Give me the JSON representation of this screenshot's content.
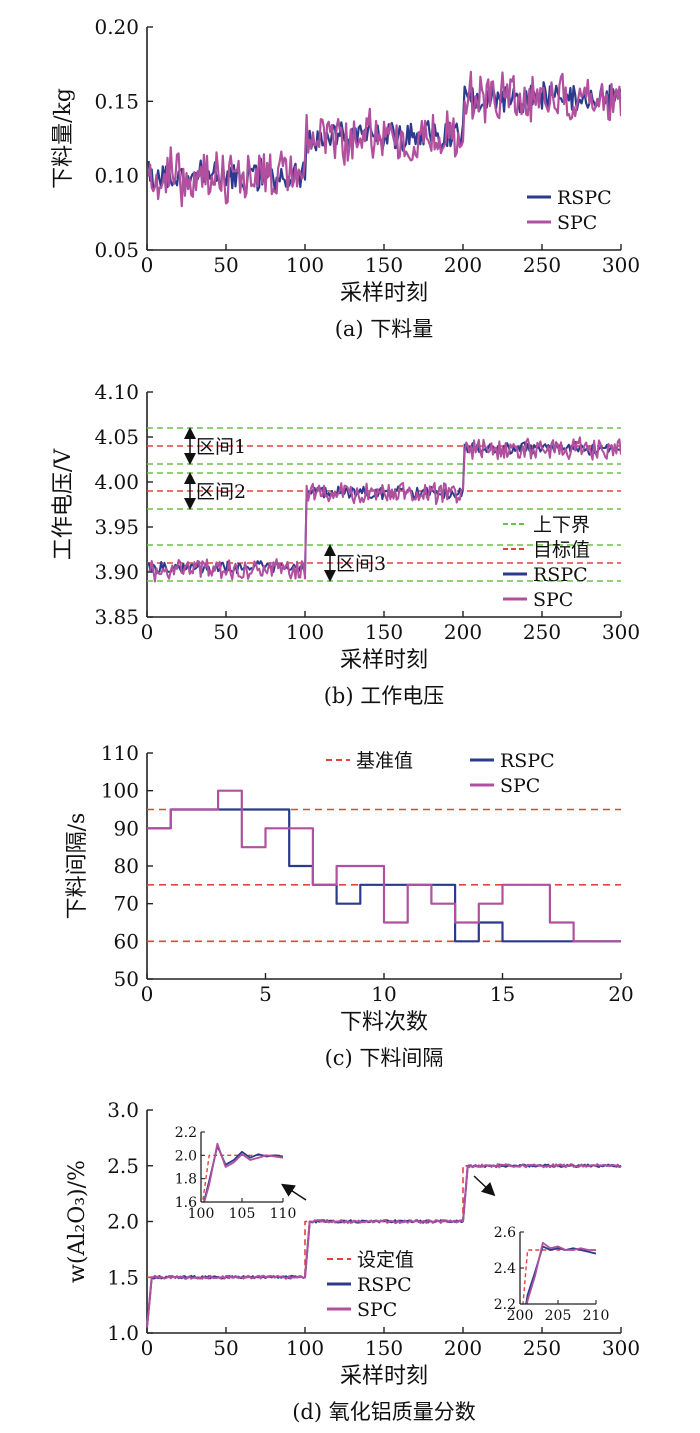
{
  "colors": {
    "rspc": "#2b3a8c",
    "spc": "#b0509e",
    "bound": "#6cc04a",
    "target": "#e0443b",
    "axis": "#222222"
  },
  "chart_data": [
    {
      "id": "a",
      "type": "line",
      "caption": "(a) 下料量",
      "xlabel": "采样时刻",
      "ylabel": "下料量/kg",
      "xlim": [
        0,
        300
      ],
      "ylim": [
        0.05,
        0.2
      ],
      "xticks": [
        0,
        50,
        100,
        150,
        200,
        250,
        300
      ],
      "yticks": [
        0.05,
        0.1,
        0.15,
        0.2
      ],
      "ytick_labels": [
        "0.05",
        "0.10",
        "0.15",
        "0.20"
      ],
      "legend_position": "lower-right",
      "legend": [
        "RSPC",
        "SPC"
      ],
      "x": {
        "start": 1,
        "end": 300,
        "step": 1
      },
      "series": [
        {
          "name": "RSPC",
          "segments": [
            {
              "from": 1,
              "to": 100,
              "mean": 0.1,
              "amp": 0.009,
              "seed": 11
            },
            {
              "from": 101,
              "to": 200,
              "mean": 0.127,
              "amp": 0.009,
              "seed": 12
            },
            {
              "from": 201,
              "to": 300,
              "mean": 0.152,
              "amp": 0.009,
              "seed": 13
            }
          ]
        },
        {
          "name": "SPC",
          "segments": [
            {
              "from": 1,
              "to": 100,
              "mean": 0.099,
              "amp": 0.016,
              "seed": 21
            },
            {
              "from": 101,
              "to": 200,
              "mean": 0.126,
              "amp": 0.016,
              "seed": 22
            },
            {
              "from": 201,
              "to": 300,
              "mean": 0.153,
              "amp": 0.016,
              "seed": 23
            }
          ]
        }
      ]
    },
    {
      "id": "b",
      "type": "line",
      "caption": "(b) 工作电压",
      "xlabel": "采样时刻",
      "ylabel": "工作电压/V",
      "xlim": [
        0,
        300
      ],
      "ylim": [
        3.85,
        4.1
      ],
      "xticks": [
        0,
        50,
        100,
        150,
        200,
        250,
        300
      ],
      "yticks": [
        3.85,
        3.9,
        3.95,
        4.0,
        4.05,
        4.1
      ],
      "ytick_labels": [
        "3.85",
        "3.90",
        "3.95",
        "4.00",
        "4.05",
        "4.10"
      ],
      "legend_position": "lower-right",
      "legend": [
        "上下界",
        "目标值",
        "RSPC",
        "SPC"
      ],
      "bounds": [
        3.89,
        3.93,
        3.97,
        4.01,
        4.02,
        4.06
      ],
      "targets": [
        3.91,
        3.99,
        4.04
      ],
      "intervals": [
        {
          "label": "区间1",
          "low": 4.02,
          "high": 4.06
        },
        {
          "label": "区间2",
          "low": 3.97,
          "high": 4.01
        },
        {
          "label": "区间3",
          "low": 3.89,
          "high": 3.93
        }
      ],
      "x": {
        "start": 1,
        "end": 300,
        "step": 1
      },
      "series": [
        {
          "name": "RSPC",
          "segments": [
            {
              "from": 1,
              "to": 100,
              "mean": 3.905,
              "amp": 0.006,
              "seed": 31
            },
            {
              "from": 101,
              "to": 200,
              "mean": 3.988,
              "amp": 0.006,
              "seed": 32
            },
            {
              "from": 201,
              "to": 300,
              "mean": 4.037,
              "amp": 0.006,
              "seed": 33
            }
          ]
        },
        {
          "name": "SPC",
          "segments": [
            {
              "from": 1,
              "to": 100,
              "mean": 3.903,
              "amp": 0.011,
              "seed": 41
            },
            {
              "from": 101,
              "to": 200,
              "mean": 3.987,
              "amp": 0.011,
              "seed": 42
            },
            {
              "from": 201,
              "to": 300,
              "mean": 4.036,
              "amp": 0.011,
              "seed": 43
            }
          ]
        }
      ]
    },
    {
      "id": "c",
      "type": "line",
      "caption": "(c) 下料间隔",
      "xlabel": "下料次数",
      "ylabel": "下料间隔/s",
      "xlim": [
        0,
        20
      ],
      "ylim": [
        50,
        110
      ],
      "xticks": [
        0,
        5,
        10,
        15,
        20
      ],
      "yticks": [
        50,
        60,
        70,
        80,
        90,
        100,
        110
      ],
      "ytick_labels": [
        "50",
        "60",
        "70",
        "80",
        "90",
        "100",
        "110"
      ],
      "legend_position": "top",
      "legend": [
        "基准值",
        "RSPC",
        "SPC"
      ],
      "reference": [
        60,
        75,
        95
      ],
      "series": [
        {
          "name": "RSPC",
          "steps": [
            90,
            95,
            95,
            95,
            95,
            95,
            80,
            75,
            70,
            75,
            75,
            75,
            75,
            60,
            65,
            60,
            60,
            60,
            60,
            60
          ]
        },
        {
          "name": "SPC",
          "steps": [
            90,
            95,
            95,
            100,
            85,
            90,
            90,
            75,
            80,
            80,
            65,
            75,
            70,
            65,
            70,
            75,
            75,
            65,
            60,
            60
          ]
        }
      ]
    },
    {
      "id": "d",
      "type": "line",
      "caption": "(d) 氧化铝质量分数",
      "xlabel": "采样时刻",
      "ylabel": "w(Al₂O₃)/%",
      "xlim": [
        0,
        300
      ],
      "ylim": [
        1.0,
        3.0
      ],
      "xticks": [
        0,
        50,
        100,
        150,
        200,
        250,
        300
      ],
      "yticks": [
        1.0,
        1.5,
        2.0,
        2.5,
        3.0
      ],
      "ytick_labels": [
        "1.0",
        "1.5",
        "2.0",
        "2.5",
        "3.0"
      ],
      "legend_position": "lower-center",
      "legend": [
        "设定值",
        "RSPC",
        "SPC"
      ],
      "setpoint": [
        {
          "from": 0,
          "to": 100,
          "value": 1.5
        },
        {
          "from": 100,
          "to": 200,
          "value": 2.0
        },
        {
          "from": 200,
          "to": 300,
          "value": 2.5
        }
      ],
      "series": [
        {
          "name": "RSPC",
          "steady": [
            1.5,
            2.0,
            2.5
          ],
          "amp": 0.012,
          "seed": 51
        },
        {
          "name": "SPC",
          "steady": [
            1.5,
            2.0,
            2.5
          ],
          "amp": 0.014,
          "seed": 61
        }
      ],
      "insets": [
        {
          "xlim": [
            100,
            110
          ],
          "ylim": [
            1.6,
            2.2
          ],
          "xticks": [
            100,
            105,
            110
          ],
          "yticks": [
            1.6,
            1.8,
            2.0,
            2.2
          ],
          "ytick_labels": [
            "1.6",
            "1.8",
            "2.0",
            "2.2"
          ],
          "setpoint": [
            [
              100,
              1.5
            ],
            [
              101,
              2.0
            ],
            [
              110,
              2.0
            ]
          ],
          "rspc": [
            [
              100,
              1.5
            ],
            [
              101,
              1.78
            ],
            [
              102,
              2.08
            ],
            [
              103,
              1.92
            ],
            [
              104,
              1.96
            ],
            [
              105,
              2.03
            ],
            [
              106,
              1.98
            ],
            [
              107,
              2.01
            ],
            [
              108,
              1.99
            ],
            [
              109,
              2.0
            ],
            [
              110,
              1.99
            ]
          ],
          "spc": [
            [
              100,
              1.5
            ],
            [
              101,
              1.75
            ],
            [
              102,
              2.1
            ],
            [
              103,
              1.9
            ],
            [
              104,
              1.94
            ],
            [
              105,
              2.01
            ],
            [
              106,
              1.96
            ],
            [
              107,
              1.98
            ],
            [
              108,
              2.0
            ],
            [
              109,
              1.99
            ],
            [
              110,
              1.98
            ]
          ]
        },
        {
          "xlim": [
            200,
            210
          ],
          "ylim": [
            2.2,
            2.6
          ],
          "xticks": [
            200,
            205,
            210
          ],
          "yticks": [
            2.2,
            2.4,
            2.6
          ],
          "ytick_labels": [
            "2.2",
            "2.4",
            "2.6"
          ],
          "setpoint": [
            [
              200,
              2.0
            ],
            [
              201,
              2.5
            ],
            [
              210,
              2.5
            ]
          ],
          "rspc": [
            [
              200,
              2.0
            ],
            [
              201,
              2.25
            ],
            [
              202,
              2.38
            ],
            [
              203,
              2.52
            ],
            [
              204,
              2.5
            ],
            [
              205,
              2.51
            ],
            [
              206,
              2.5
            ],
            [
              207,
              2.51
            ],
            [
              208,
              2.5
            ],
            [
              209,
              2.49
            ],
            [
              210,
              2.48
            ]
          ],
          "spc": [
            [
              200,
              2.0
            ],
            [
              201,
              2.22
            ],
            [
              202,
              2.36
            ],
            [
              203,
              2.54
            ],
            [
              204,
              2.51
            ],
            [
              205,
              2.52
            ],
            [
              206,
              2.5
            ],
            [
              207,
              2.5
            ],
            [
              208,
              2.51
            ],
            [
              209,
              2.5
            ],
            [
              210,
              2.5
            ]
          ]
        }
      ]
    }
  ]
}
